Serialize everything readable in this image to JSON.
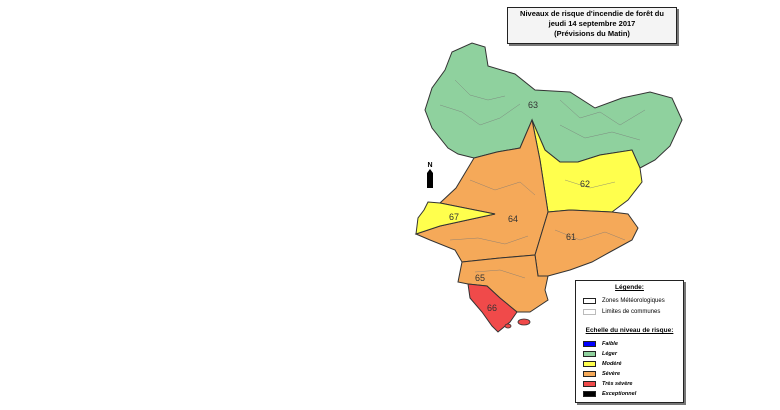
{
  "title": {
    "line1": "Niveaux de risque d'incendie de forêt du",
    "line2": "jeudi 14 septembre 2017",
    "line3": "(Prévisions du Matin)"
  },
  "north_label": "N",
  "zones": [
    {
      "id": "63",
      "level": "Léger"
    },
    {
      "id": "62",
      "level": "Modéré"
    },
    {
      "id": "64",
      "level": "Sévère"
    },
    {
      "id": "67",
      "level": "Modéré"
    },
    {
      "id": "61",
      "level": "Sévère"
    },
    {
      "id": "65",
      "level": "Sévère"
    },
    {
      "id": "66",
      "level": "Très sévère"
    }
  ],
  "legend": {
    "title": "Légende:",
    "zones_label": "Zones Météorologiques",
    "communes_label": "Limites de communes",
    "scale_title": "Echelle du niveau de risque:",
    "levels": [
      {
        "label": "Faible",
        "color": "#0000ff"
      },
      {
        "label": "Léger",
        "color": "#8fd19e"
      },
      {
        "label": "Modéré",
        "color": "#ffff4d"
      },
      {
        "label": "Sévère",
        "color": "#f5a959"
      },
      {
        "label": "Très sévère",
        "color": "#f04a4a"
      },
      {
        "label": "Exceptionnel",
        "color": "#000000"
      }
    ]
  }
}
